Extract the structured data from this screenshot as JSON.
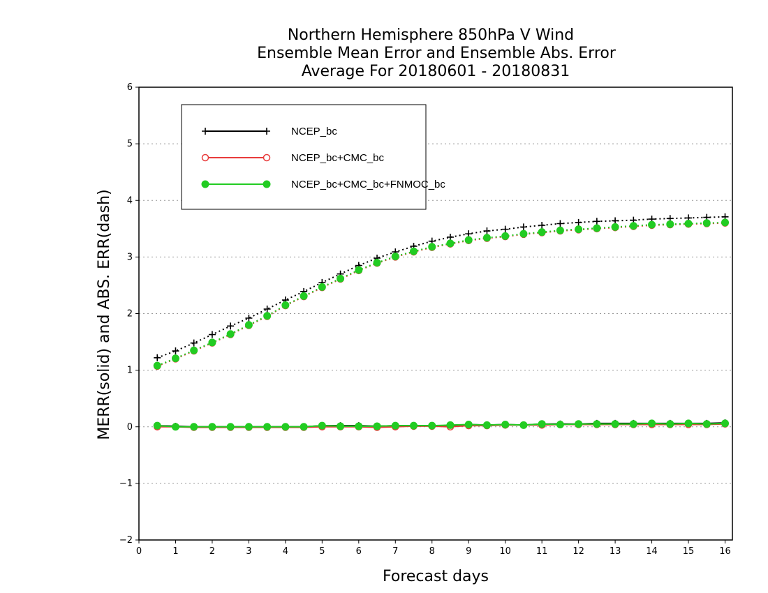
{
  "chart_data": {
    "type": "line",
    "title_lines": [
      "Northern Hemisphere 850hPa V Wind",
      "Ensemble Mean Error and Ensemble Abs. Error",
      "Average For 20180601 - 20180831"
    ],
    "xlabel": "Forecast days",
    "ylabel": "MERR(solid) and ABS. ERR(dash)",
    "xlim": [
      0,
      16.2
    ],
    "ylim": [
      -2,
      6
    ],
    "x_ticks": [
      0,
      1,
      2,
      3,
      4,
      5,
      6,
      7,
      8,
      9,
      10,
      11,
      12,
      13,
      14,
      15,
      16
    ],
    "y_ticks": [
      -2,
      -1,
      0,
      1,
      2,
      3,
      4,
      5,
      6
    ],
    "grid": "horizontal dotted",
    "legend_position": "top-left",
    "x": [
      0.5,
      1.0,
      1.5,
      2.0,
      2.5,
      3.0,
      3.5,
      4.0,
      4.5,
      5.0,
      5.5,
      6.0,
      6.5,
      7.0,
      7.5,
      8.0,
      8.5,
      9.0,
      9.5,
      10.0,
      10.5,
      11.0,
      11.5,
      12.0,
      12.5,
      13.0,
      13.5,
      14.0,
      14.5,
      15.0,
      15.5,
      16.0
    ],
    "series": [
      {
        "name": "NCEP_bc",
        "color": "#000000",
        "marker": "plus",
        "merr": [
          0.02,
          0.01,
          0.0,
          0.0,
          0.0,
          0.0,
          0.0,
          0.0,
          0.0,
          0.02,
          0.02,
          0.02,
          0.01,
          0.02,
          0.02,
          0.02,
          0.02,
          0.04,
          0.03,
          0.04,
          0.03,
          0.05,
          0.05,
          0.05,
          0.06,
          0.06,
          0.06,
          0.06,
          0.06,
          0.06,
          0.06,
          0.07
        ],
        "abs_err": [
          1.22,
          1.34,
          1.48,
          1.63,
          1.78,
          1.92,
          2.08,
          2.24,
          2.39,
          2.55,
          2.7,
          2.85,
          2.98,
          3.09,
          3.19,
          3.28,
          3.35,
          3.41,
          3.46,
          3.49,
          3.53,
          3.56,
          3.59,
          3.61,
          3.63,
          3.64,
          3.65,
          3.67,
          3.68,
          3.69,
          3.7,
          3.71
        ]
      },
      {
        "name": "NCEP_bc+CMC_bc",
        "color": "#e83c3c",
        "marker": "open-circle",
        "merr": [
          0.0,
          0.0,
          -0.01,
          -0.01,
          -0.01,
          -0.01,
          -0.01,
          -0.01,
          -0.01,
          0.0,
          0.0,
          0.0,
          -0.01,
          0.0,
          0.01,
          0.01,
          0.0,
          0.02,
          0.02,
          0.03,
          0.03,
          0.03,
          0.04,
          0.04,
          0.04,
          0.04,
          0.04,
          0.04,
          0.04,
          0.04,
          0.04,
          0.05
        ],
        "abs_err": [
          1.07,
          1.2,
          1.34,
          1.48,
          1.63,
          1.79,
          1.95,
          2.14,
          2.3,
          2.46,
          2.61,
          2.76,
          2.89,
          3.0,
          3.09,
          3.17,
          3.23,
          3.29,
          3.33,
          3.36,
          3.4,
          3.43,
          3.46,
          3.48,
          3.5,
          3.52,
          3.54,
          3.56,
          3.57,
          3.58,
          3.59,
          3.6
        ]
      },
      {
        "name": "NCEP_bc+CMC_bc+FNMOC_bc",
        "color": "#22cc22",
        "marker": "filled-circle",
        "merr": [
          0.02,
          0.0,
          0.0,
          0.0,
          0.0,
          0.0,
          0.0,
          0.0,
          0.0,
          0.02,
          0.01,
          0.01,
          0.01,
          0.02,
          0.02,
          0.02,
          0.03,
          0.04,
          0.03,
          0.04,
          0.03,
          0.05,
          0.04,
          0.05,
          0.05,
          0.05,
          0.05,
          0.06,
          0.05,
          0.06,
          0.05,
          0.06
        ],
        "abs_err": [
          1.08,
          1.21,
          1.35,
          1.49,
          1.64,
          1.8,
          1.96,
          2.15,
          2.31,
          2.47,
          2.62,
          2.77,
          2.9,
          3.01,
          3.1,
          3.18,
          3.24,
          3.3,
          3.34,
          3.37,
          3.41,
          3.44,
          3.47,
          3.49,
          3.51,
          3.53,
          3.55,
          3.57,
          3.58,
          3.59,
          3.6,
          3.61
        ]
      }
    ]
  }
}
